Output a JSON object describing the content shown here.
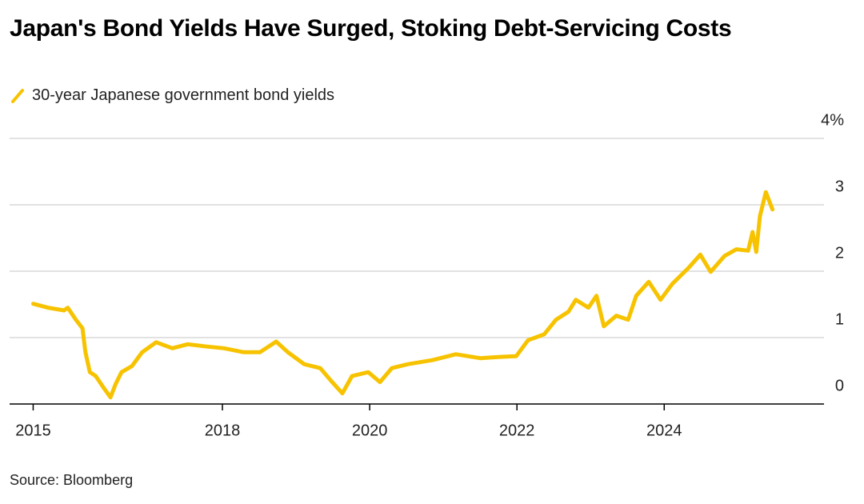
{
  "chart_data": {
    "type": "line",
    "title": "Japan's Bond Yields Have Surged, Stoking Debt-Servicing Costs",
    "source": "Source: Bloomberg",
    "x": [
      2015.43,
      2015.63,
      2015.85,
      2015.9,
      2016.01,
      2016.1,
      2016.14,
      2016.2,
      2016.28,
      2016.39,
      2016.48,
      2016.55,
      2016.63,
      2016.77,
      2016.91,
      2017.1,
      2017.32,
      2017.53,
      2017.75,
      2018.02,
      2018.29,
      2018.51,
      2018.73,
      2018.89,
      2019.11,
      2019.33,
      2019.49,
      2019.63,
      2019.76,
      2019.98,
      2020.14,
      2020.3,
      2020.52,
      2020.85,
      2021.17,
      2021.5,
      2021.77,
      2021.99,
      2022.15,
      2022.37,
      2022.53,
      2022.7,
      2022.8,
      2022.97,
      2023.08,
      2023.18,
      2023.35,
      2023.51,
      2023.62,
      2023.79,
      2023.95,
      2024.11,
      2024.33,
      2024.49,
      2024.63,
      2024.82,
      2024.98,
      2025.14,
      2025.2,
      2025.25,
      2025.3,
      2025.38,
      2025.47
    ],
    "series": [
      {
        "name": "30-year Japanese government bond yields",
        "color": "#f7c300",
        "values": [
          1.51,
          1.45,
          1.41,
          1.45,
          1.27,
          1.14,
          0.78,
          0.48,
          0.42,
          0.24,
          0.1,
          0.3,
          0.48,
          0.57,
          0.78,
          0.93,
          0.84,
          0.9,
          0.87,
          0.84,
          0.78,
          0.78,
          0.94,
          0.78,
          0.6,
          0.54,
          0.33,
          0.16,
          0.42,
          0.48,
          0.33,
          0.54,
          0.6,
          0.66,
          0.75,
          0.69,
          0.71,
          0.72,
          0.96,
          1.05,
          1.27,
          1.39,
          1.57,
          1.45,
          1.63,
          1.17,
          1.33,
          1.27,
          1.63,
          1.84,
          1.57,
          1.81,
          2.05,
          2.25,
          1.99,
          2.23,
          2.33,
          2.31,
          2.59,
          2.29,
          2.83,
          3.19,
          2.93
        ]
      }
    ],
    "xlim": [
      2015.11,
      2026.17
    ],
    "xticks": [
      {
        "value": 2015.43,
        "label": "2015"
      },
      2018,
      2020,
      2022,
      2024
    ],
    "ylim": [
      0,
      4
    ],
    "yticks": [
      0,
      1,
      2,
      3,
      {
        "value": 4,
        "label": "4%"
      }
    ],
    "grid": true
  }
}
